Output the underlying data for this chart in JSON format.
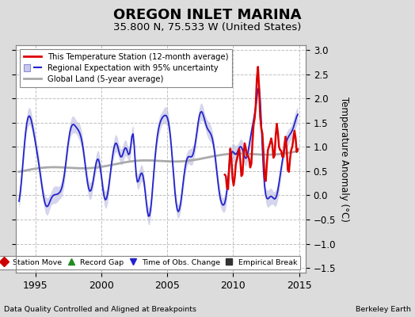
{
  "title": "OREGON INLET MARINA",
  "subtitle": "35.800 N, 75.533 W (United States)",
  "ylabel": "Temperature Anomaly (°C)",
  "footer_left": "Data Quality Controlled and Aligned at Breakpoints",
  "footer_right": "Berkeley Earth",
  "xlim": [
    1993.5,
    2015.5
  ],
  "ylim": [
    -1.6,
    3.1
  ],
  "yticks": [
    -1.5,
    -1.0,
    -0.5,
    0.0,
    0.5,
    1.0,
    1.5,
    2.0,
    2.5,
    3.0
  ],
  "xticks": [
    1995,
    2000,
    2005,
    2010,
    2015
  ],
  "bg_color": "#dcdcdc",
  "plot_bg_color": "#ffffff",
  "grid_color": "#c0c0c0",
  "title_fontsize": 13,
  "subtitle_fontsize": 9.5,
  "red_color": "#dd0000",
  "blue_color": "#2222cc",
  "blue_fill_color": "#8888cc",
  "gray_color": "#aaaaaa",
  "legend_labels": [
    "This Temperature Station (12-month average)",
    "Regional Expectation with 95% uncertainty",
    "Global Land (5-year average)"
  ],
  "marker_legend": [
    {
      "label": "Station Move",
      "marker": "D",
      "color": "#cc0000"
    },
    {
      "label": "Record Gap",
      "marker": "^",
      "color": "#228B22"
    },
    {
      "label": "Time of Obs. Change",
      "marker": "v",
      "color": "#2222cc"
    },
    {
      "label": "Empirical Break",
      "marker": "s",
      "color": "#333333"
    }
  ]
}
